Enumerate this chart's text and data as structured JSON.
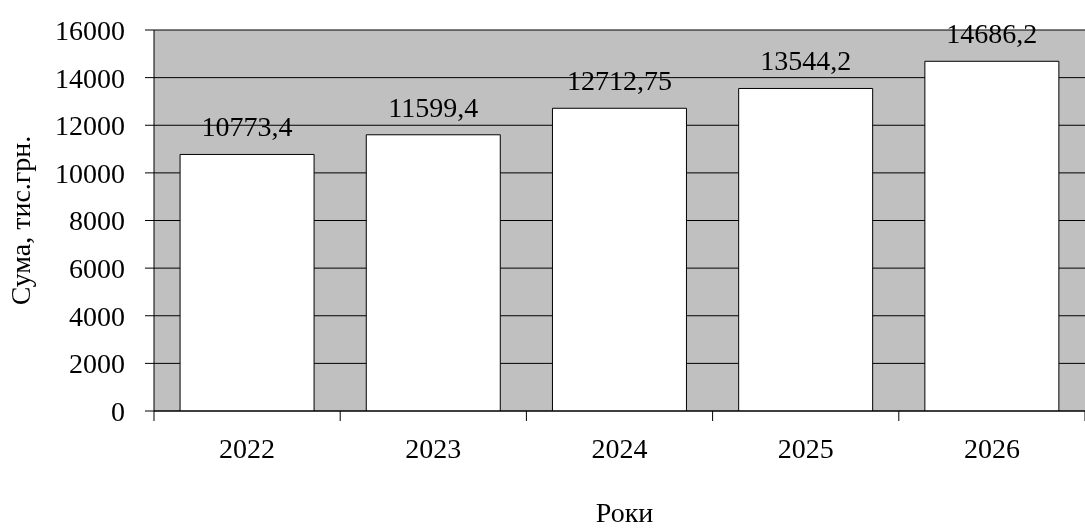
{
  "chart_data": {
    "type": "bar",
    "xlabel": "Роки",
    "ylabel": "Сума, тис.грн.",
    "categories": [
      "2022",
      "2023",
      "2024",
      "2025",
      "2026"
    ],
    "values": [
      10773.4,
      11599.4,
      12712.75,
      13544.2,
      14686.2
    ],
    "value_labels": [
      "10773,4",
      "11599,4",
      "12712,75",
      "13544,2",
      "14686,2"
    ],
    "color": "#ffffff",
    "ylim": [
      0,
      16000
    ],
    "yticks": [
      0,
      2000,
      4000,
      6000,
      8000,
      10000,
      12000,
      14000,
      16000
    ],
    "grid": "y"
  }
}
